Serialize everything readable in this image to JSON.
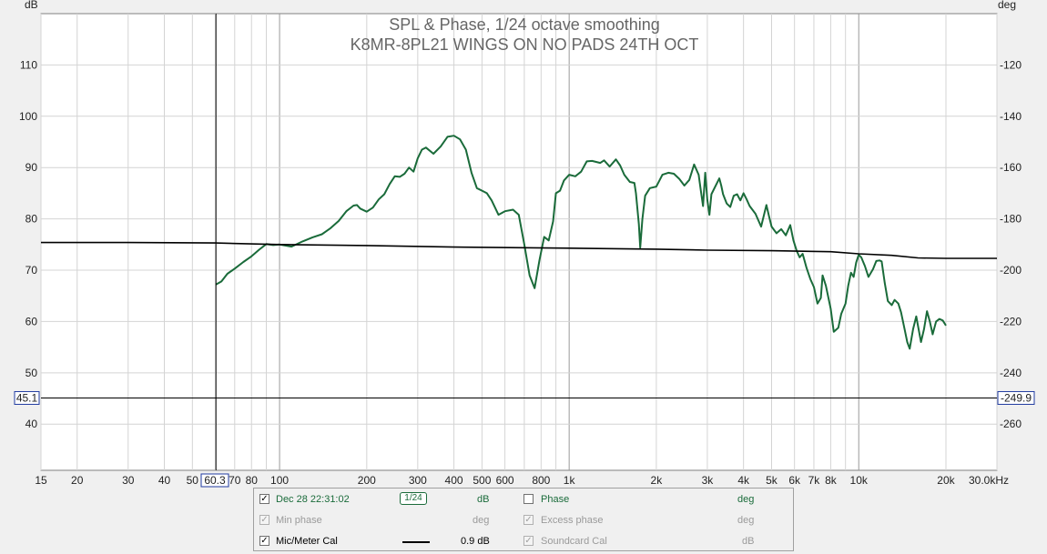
{
  "chart_data": {
    "type": "line",
    "title": "SPL & Phase, 1/24 octave smoothing",
    "subtitle": "K8MR-8PL21 WINGS ON NO PADS 24TH OCT",
    "left_axis_unit": "dB",
    "right_axis_unit": "deg",
    "x_scale": "log",
    "x_unit_suffix": "kHz",
    "xlim": [
      15,
      30000
    ],
    "ylim": [
      31,
      120
    ],
    "y2lim": [
      -278,
      -100
    ],
    "x_ticks": [
      {
        "value": 15,
        "label": "15"
      },
      {
        "value": 20,
        "label": "20"
      },
      {
        "value": 30,
        "label": "30"
      },
      {
        "value": 40,
        "label": "40"
      },
      {
        "value": 50,
        "label": "50"
      },
      {
        "value": 70,
        "label": "70"
      },
      {
        "value": 80,
        "label": "80"
      },
      {
        "value": 100,
        "label": "100"
      },
      {
        "value": 200,
        "label": "200"
      },
      {
        "value": 300,
        "label": "300"
      },
      {
        "value": 400,
        "label": "400"
      },
      {
        "value": 500,
        "label": "500"
      },
      {
        "value": 600,
        "label": "600"
      },
      {
        "value": 800,
        "label": "800"
      },
      {
        "value": 1000,
        "label": "1k"
      },
      {
        "value": 2000,
        "label": "2k"
      },
      {
        "value": 3000,
        "label": "3k"
      },
      {
        "value": 4000,
        "label": "4k"
      },
      {
        "value": 5000,
        "label": "5k"
      },
      {
        "value": 6000,
        "label": "6k"
      },
      {
        "value": 7000,
        "label": "7k"
      },
      {
        "value": 8000,
        "label": "8k"
      },
      {
        "value": 10000,
        "label": "10k"
      },
      {
        "value": 20000,
        "label": "20k"
      },
      {
        "value": 30000,
        "label": "30.0kHz"
      }
    ],
    "y_ticks": [
      40,
      50,
      60,
      70,
      80,
      90,
      100,
      110
    ],
    "y2_ticks": [
      -260,
      -240,
      -220,
      -200,
      -180,
      -160,
      -140,
      -120
    ],
    "grid": true,
    "cursor": {
      "x": 60.3,
      "x_label": "60.3",
      "y": 45.1,
      "y_label": "45.1",
      "y2_label": "-249.9"
    },
    "series": [
      {
        "name": "Dec 28 22:31:02",
        "color": "#1a6b3a",
        "points": [
          [
            60.3,
            67.2
          ],
          [
            63,
            67.8
          ],
          [
            66,
            69.3
          ],
          [
            70,
            70.3
          ],
          [
            75,
            71.6
          ],
          [
            80,
            72.7
          ],
          [
            85,
            74.0
          ],
          [
            90,
            75.1
          ],
          [
            95,
            74.9
          ],
          [
            100,
            75.0
          ],
          [
            110,
            74.6
          ],
          [
            120,
            75.6
          ],
          [
            130,
            76.4
          ],
          [
            140,
            77.0
          ],
          [
            150,
            78.2
          ],
          [
            160,
            79.6
          ],
          [
            170,
            81.5
          ],
          [
            180,
            82.6
          ],
          [
            185,
            82.7
          ],
          [
            190,
            82.0
          ],
          [
            200,
            81.4
          ],
          [
            210,
            82.2
          ],
          [
            220,
            83.8
          ],
          [
            230,
            84.8
          ],
          [
            240,
            86.8
          ],
          [
            250,
            88.3
          ],
          [
            260,
            88.2
          ],
          [
            270,
            88.8
          ],
          [
            280,
            90.0
          ],
          [
            290,
            89.2
          ],
          [
            300,
            91.8
          ],
          [
            310,
            93.5
          ],
          [
            320,
            93.9
          ],
          [
            340,
            92.7
          ],
          [
            360,
            94.1
          ],
          [
            380,
            96.0
          ],
          [
            400,
            96.2
          ],
          [
            420,
            95.5
          ],
          [
            440,
            93.5
          ],
          [
            460,
            89.0
          ],
          [
            480,
            86.0
          ],
          [
            500,
            85.5
          ],
          [
            520,
            85.0
          ],
          [
            540,
            83.6
          ],
          [
            570,
            80.8
          ],
          [
            600,
            81.5
          ],
          [
            640,
            81.8
          ],
          [
            670,
            80.8
          ],
          [
            700,
            75.0
          ],
          [
            730,
            69.0
          ],
          [
            760,
            66.5
          ],
          [
            790,
            72.0
          ],
          [
            820,
            76.5
          ],
          [
            850,
            75.8
          ],
          [
            880,
            79.5
          ],
          [
            900,
            85.0
          ],
          [
            930,
            85.5
          ],
          [
            960,
            87.5
          ],
          [
            1000,
            88.6
          ],
          [
            1050,
            88.3
          ],
          [
            1100,
            89.2
          ],
          [
            1150,
            91.2
          ],
          [
            1200,
            91.3
          ],
          [
            1280,
            90.9
          ],
          [
            1320,
            91.4
          ],
          [
            1380,
            90.2
          ],
          [
            1450,
            91.6
          ],
          [
            1500,
            90.4
          ],
          [
            1550,
            88.6
          ],
          [
            1620,
            87.2
          ],
          [
            1680,
            87.0
          ],
          [
            1700,
            85.0
          ],
          [
            1740,
            79.0
          ],
          [
            1760,
            74.4
          ],
          [
            1790,
            80.0
          ],
          [
            1830,
            84.5
          ],
          [
            1900,
            86.0
          ],
          [
            2000,
            86.3
          ],
          [
            2100,
            88.6
          ],
          [
            2200,
            89.0
          ],
          [
            2300,
            88.8
          ],
          [
            2400,
            87.8
          ],
          [
            2500,
            86.5
          ],
          [
            2600,
            87.6
          ],
          [
            2700,
            90.6
          ],
          [
            2800,
            88.6
          ],
          [
            2850,
            85.5
          ],
          [
            2900,
            82.5
          ],
          [
            2950,
            89.0
          ],
          [
            3000,
            83.7
          ],
          [
            3050,
            80.8
          ],
          [
            3100,
            84.8
          ],
          [
            3300,
            87.9
          ],
          [
            3350,
            86.5
          ],
          [
            3400,
            84.8
          ],
          [
            3500,
            83.0
          ],
          [
            3600,
            82.3
          ],
          [
            3700,
            84.5
          ],
          [
            3800,
            84.8
          ],
          [
            3900,
            83.6
          ],
          [
            4000,
            85.0
          ],
          [
            4100,
            83.8
          ],
          [
            4200,
            82.5
          ],
          [
            4400,
            81.0
          ],
          [
            4600,
            78.5
          ],
          [
            4800,
            82.7
          ],
          [
            4900,
            80.5
          ],
          [
            5000,
            78.5
          ],
          [
            5200,
            77.2
          ],
          [
            5400,
            78.0
          ],
          [
            5600,
            76.8
          ],
          [
            5800,
            78.8
          ],
          [
            5950,
            75.8
          ],
          [
            6100,
            73.8
          ],
          [
            6250,
            72.5
          ],
          [
            6400,
            73.2
          ],
          [
            6600,
            70.5
          ],
          [
            6800,
            68.3
          ],
          [
            7000,
            66.7
          ],
          [
            7200,
            63.5
          ],
          [
            7400,
            64.6
          ],
          [
            7500,
            69.0
          ],
          [
            7700,
            67.0
          ],
          [
            8000,
            62.5
          ],
          [
            8200,
            58.0
          ],
          [
            8500,
            58.8
          ],
          [
            8700,
            61.5
          ],
          [
            9000,
            63.5
          ],
          [
            9200,
            67.0
          ],
          [
            9400,
            69.5
          ],
          [
            9600,
            68.7
          ],
          [
            9800,
            71.5
          ],
          [
            10000,
            73.0
          ],
          [
            10200,
            72.5
          ],
          [
            10500,
            70.8
          ],
          [
            10800,
            68.7
          ],
          [
            11200,
            70.2
          ],
          [
            11500,
            71.8
          ],
          [
            11800,
            71.9
          ],
          [
            12000,
            71.7
          ],
          [
            12300,
            67.5
          ],
          [
            12600,
            64.0
          ],
          [
            13000,
            63.2
          ],
          [
            13300,
            64.2
          ],
          [
            13700,
            63.5
          ],
          [
            14000,
            61.8
          ],
          [
            14400,
            58.5
          ],
          [
            14700,
            56.0
          ],
          [
            15000,
            54.7
          ],
          [
            15400,
            58.5
          ],
          [
            15800,
            61.0
          ],
          [
            16100,
            58.5
          ],
          [
            16400,
            56.0
          ],
          [
            16800,
            58.5
          ],
          [
            17200,
            62.0
          ],
          [
            17600,
            60.0
          ],
          [
            18000,
            57.5
          ],
          [
            18500,
            60.0
          ],
          [
            19000,
            60.5
          ],
          [
            19500,
            60.2
          ],
          [
            20000,
            59.2
          ]
        ]
      },
      {
        "name": "Mic/Meter Cal",
        "color": "#000000",
        "points": [
          [
            15,
            75.4
          ],
          [
            30,
            75.4
          ],
          [
            60,
            75.3
          ],
          [
            100,
            75.0
          ],
          [
            200,
            74.8
          ],
          [
            400,
            74.5
          ],
          [
            1000,
            74.3
          ],
          [
            2000,
            74.1
          ],
          [
            3000,
            73.9
          ],
          [
            5000,
            73.8
          ],
          [
            8000,
            73.6
          ],
          [
            10000,
            73.2
          ],
          [
            13000,
            72.9
          ],
          [
            16000,
            72.4
          ],
          [
            20000,
            72.3
          ],
          [
            30000,
            72.3
          ]
        ]
      }
    ]
  },
  "legend": {
    "rows": [
      {
        "left_label": "Dec 28 22:31:02",
        "left_checked": "✓",
        "left_unit": "dB",
        "smoothing": "1/24",
        "right_label": "Phase",
        "right_checked": "",
        "right_unit": "deg"
      },
      {
        "left_label": "Min phase",
        "left_checked": "✓",
        "left_unit": "deg",
        "right_label": "Excess phase",
        "right_checked": "✓",
        "right_unit": "deg"
      },
      {
        "left_label": "Mic/Meter Cal",
        "left_checked": "✓",
        "left_unit": "0.9 dB",
        "right_label": "Soundcard Cal",
        "right_checked": "✓",
        "right_unit": "dB"
      }
    ]
  }
}
